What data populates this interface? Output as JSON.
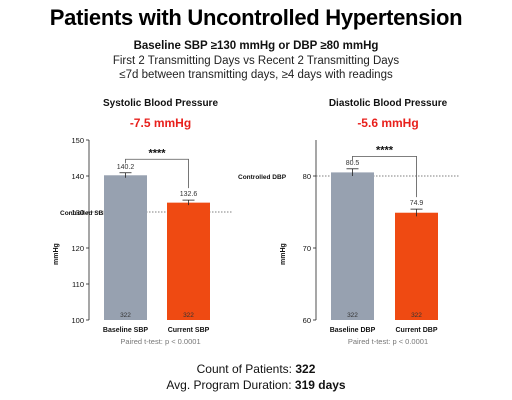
{
  "header": {
    "title": "Patients with Uncontrolled Hypertension",
    "subtitle_bold": "Baseline SBP ≥130 mmHg or DBP ≥80 mmHg",
    "subtitle_line2": "First 2 Transmitting Days vs Recent 2 Transmitting Days",
    "subtitle_line3": "≤7d between transmitting days, ≥4 days with readings"
  },
  "footer": {
    "count_label": "Count of Patients:",
    "count_value": "322",
    "duration_label": "Avg. Program Duration:",
    "duration_value": "319 days"
  },
  "colors": {
    "baseline": "#97a1b0",
    "current": "#ef4a12",
    "delta": "#e8201c"
  },
  "chart_data": [
    {
      "type": "bar",
      "title": "Systolic Blood Pressure",
      "delta_label": "-7.5 mmHg",
      "ylabel": "mmHg",
      "ylim": [
        100,
        150
      ],
      "yticks": [
        "100",
        "110",
        "120",
        "130",
        "140",
        "150"
      ],
      "categories": [
        "Baseline SBP",
        "Current SBP"
      ],
      "values": [
        140.2,
        132.6
      ],
      "value_labels": [
        "140.2",
        "132.6"
      ],
      "errors": [
        0.7,
        0.7
      ],
      "n_labels": [
        "322",
        "322"
      ],
      "significance": "****",
      "threshold": {
        "value": 130,
        "label": "Controlled SBP"
      },
      "test_note": "Paired t-test: p < 0.0001"
    },
    {
      "type": "bar",
      "title": "Diastolic Blood Pressure",
      "delta_label": "-5.6 mmHg",
      "ylabel": "mmHg",
      "ylim": [
        60,
        85
      ],
      "yticks": [
        "60",
        "70",
        "80"
      ],
      "categories": [
        "Baseline DBP",
        "Current DBP"
      ],
      "values": [
        80.5,
        74.9
      ],
      "value_labels": [
        "80.5",
        "74.9"
      ],
      "errors": [
        0.5,
        0.5
      ],
      "n_labels": [
        "322",
        "322"
      ],
      "significance": "****",
      "threshold": {
        "value": 80,
        "label": "Controlled DBP"
      },
      "test_note": "Paired t-test: p < 0.0001"
    }
  ]
}
